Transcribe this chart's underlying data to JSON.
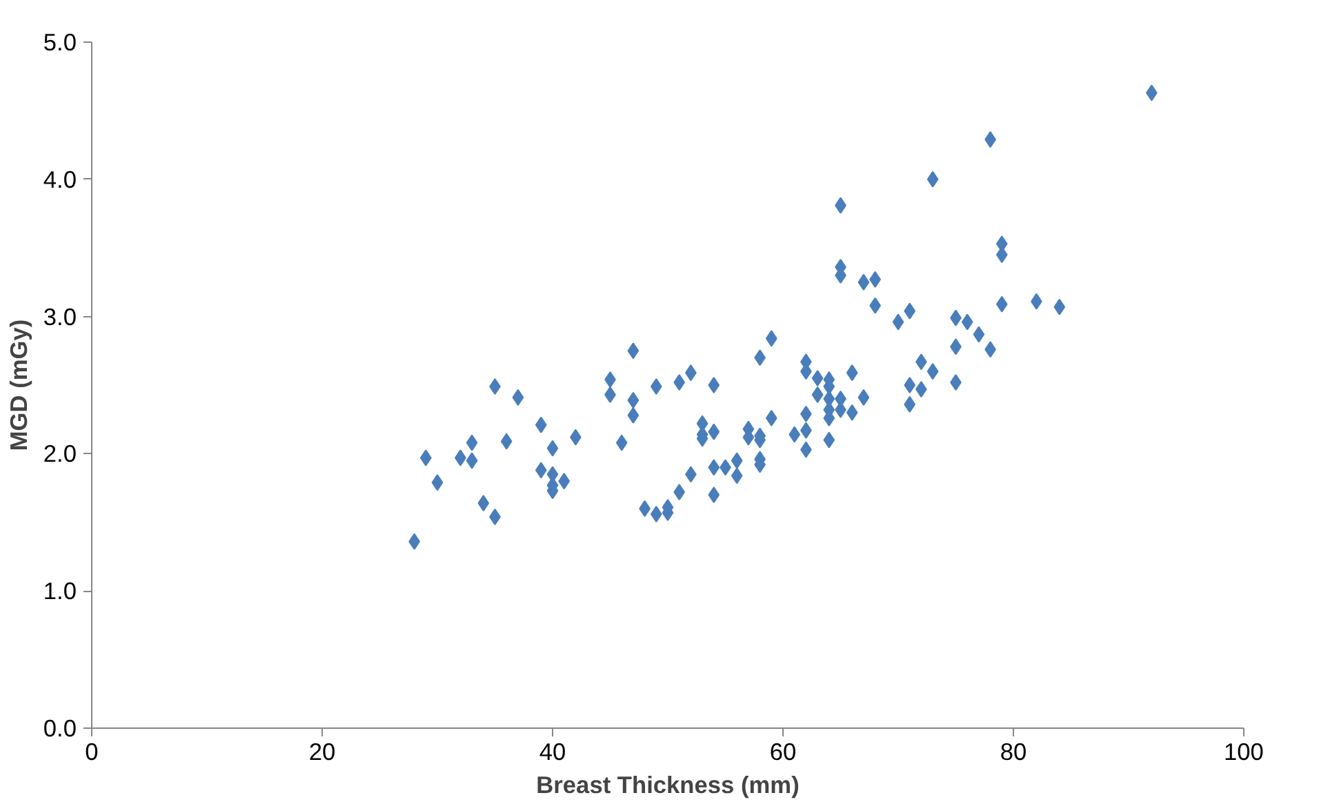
{
  "chart_data": {
    "type": "scatter",
    "xlabel": "Breast Thickness (mm)",
    "ylabel": "MGD (mGy)",
    "xlim": [
      0,
      100
    ],
    "xticks": [
      0,
      20,
      40,
      60,
      80,
      100
    ],
    "ylim": [
      0,
      5
    ],
    "yticks": [
      {
        "value": 0,
        "label": "0.0"
      },
      {
        "value": 1,
        "label": "1.0"
      },
      {
        "value": 2,
        "label": "2.0"
      },
      {
        "value": 3,
        "label": "3.0"
      },
      {
        "value": 4,
        "label": "4.0"
      },
      {
        "value": 5,
        "label": "5.0"
      }
    ],
    "grid": false,
    "marker": "diamond",
    "series": [
      {
        "color": "#4a7ebb",
        "x": [
          28,
          29,
          30,
          32,
          33,
          33,
          34,
          35,
          35,
          36,
          37,
          39,
          39,
          40,
          40,
          40,
          40,
          41,
          42,
          45,
          45,
          46,
          47,
          47,
          47,
          48,
          49,
          49,
          50,
          50,
          51,
          51,
          52,
          52,
          53,
          53,
          53,
          54,
          54,
          54,
          54,
          55,
          56,
          56,
          57,
          57,
          58,
          58,
          58,
          58,
          58,
          59,
          59,
          61,
          62,
          62,
          62,
          62,
          62,
          63,
          63,
          64,
          64,
          64,
          64,
          64,
          64,
          65,
          65,
          65,
          65,
          65,
          66,
          66,
          67,
          67,
          68,
          68,
          70,
          71,
          71,
          71,
          72,
          72,
          73,
          73,
          75,
          75,
          75,
          76,
          77,
          78,
          78,
          79,
          79,
          79,
          82,
          84,
          92
        ],
        "values": [
          1.36,
          1.97,
          1.79,
          1.97,
          2.08,
          1.95,
          1.64,
          1.54,
          2.49,
          2.09,
          2.41,
          2.21,
          1.88,
          2.04,
          1.85,
          1.77,
          1.73,
          1.8,
          2.12,
          2.54,
          2.43,
          2.08,
          2.75,
          2.39,
          2.28,
          1.6,
          1.56,
          2.49,
          1.61,
          1.57,
          1.72,
          2.52,
          1.85,
          2.59,
          2.22,
          2.14,
          2.11,
          1.7,
          1.9,
          2.16,
          2.5,
          1.9,
          1.95,
          1.84,
          2.18,
          2.12,
          1.96,
          1.92,
          2.13,
          2.1,
          2.7,
          2.26,
          2.84,
          2.14,
          2.17,
          2.03,
          2.29,
          2.67,
          2.6,
          2.55,
          2.43,
          2.54,
          2.49,
          2.4,
          2.32,
          2.26,
          2.1,
          2.4,
          2.32,
          3.81,
          3.36,
          3.3,
          2.59,
          2.3,
          2.41,
          3.25,
          3.27,
          3.08,
          2.96,
          2.5,
          2.36,
          3.04,
          2.67,
          2.47,
          2.6,
          4.0,
          2.99,
          2.78,
          2.52,
          2.96,
          2.87,
          2.76,
          4.29,
          3.53,
          3.45,
          3.09,
          3.11,
          3.07,
          4.63
        ]
      }
    ]
  }
}
